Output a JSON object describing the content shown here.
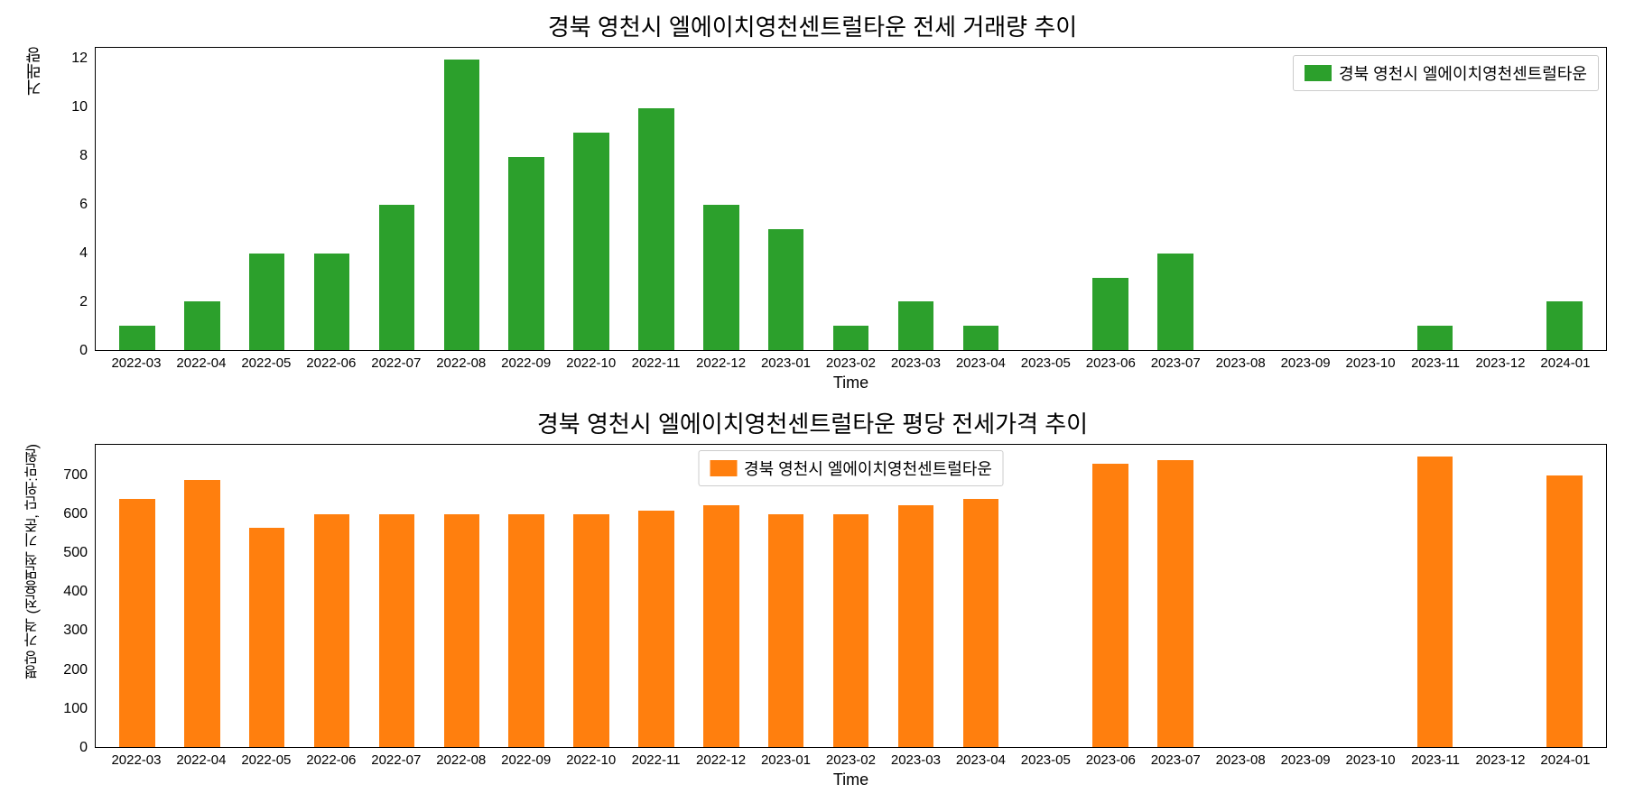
{
  "chart1": {
    "type": "bar",
    "title": "경북 영천시 엘에이치영천센트럴타운 전세 거래량 추이",
    "xlabel": "Time",
    "ylabel": "거래량",
    "legend_label": "경북 영천시 엘에이치영천센트럴타운",
    "legend_position": "top-right",
    "bar_color": "#2ca02c",
    "categories": [
      "2022-03",
      "2022-04",
      "2022-05",
      "2022-06",
      "2022-07",
      "2022-08",
      "2022-09",
      "2022-10",
      "2022-11",
      "2022-12",
      "2023-01",
      "2023-02",
      "2023-03",
      "2023-04",
      "2023-05",
      "2023-06",
      "2023-07",
      "2023-08",
      "2023-09",
      "2023-10",
      "2023-11",
      "2023-12",
      "2024-01"
    ],
    "values": [
      1,
      2,
      4,
      4,
      6,
      12,
      8,
      9,
      10,
      6,
      5,
      1,
      2,
      1,
      0,
      3,
      4,
      0,
      0,
      0,
      1,
      0,
      2
    ],
    "ylim": [
      0,
      12.5
    ],
    "yticks": [
      0,
      2,
      4,
      6,
      8,
      10,
      12
    ],
    "background_color": "#ffffff",
    "border_color": "#000000",
    "title_fontsize": 26,
    "label_fontsize": 18,
    "tick_fontsize": 16
  },
  "chart2": {
    "type": "bar",
    "title": "경북 영천시 엘에이치영천센트럴타운 평당 전세가격 추이",
    "xlabel": "Time",
    "ylabel": "평당 가격 (전용면적 기준, 단위:만원)",
    "legend_label": "경북 영천시 엘에이치영천센트럴타운",
    "legend_position": "top-center",
    "bar_color": "#ff7f0e",
    "categories": [
      "2022-03",
      "2022-04",
      "2022-05",
      "2022-06",
      "2022-07",
      "2022-08",
      "2022-09",
      "2022-10",
      "2022-11",
      "2022-12",
      "2023-01",
      "2023-02",
      "2023-03",
      "2023-04",
      "2023-05",
      "2023-06",
      "2023-07",
      "2023-08",
      "2023-09",
      "2023-10",
      "2023-11",
      "2023-12",
      "2024-01"
    ],
    "values": [
      640,
      690,
      565,
      600,
      600,
      600,
      600,
      600,
      610,
      625,
      600,
      600,
      625,
      640,
      0,
      730,
      740,
      0,
      0,
      0,
      750,
      0,
      700
    ],
    "ylim": [
      0,
      780
    ],
    "yticks": [
      0,
      100,
      200,
      300,
      400,
      500,
      600,
      700
    ],
    "background_color": "#ffffff",
    "border_color": "#000000",
    "title_fontsize": 26,
    "label_fontsize": 18,
    "tick_fontsize": 16
  }
}
